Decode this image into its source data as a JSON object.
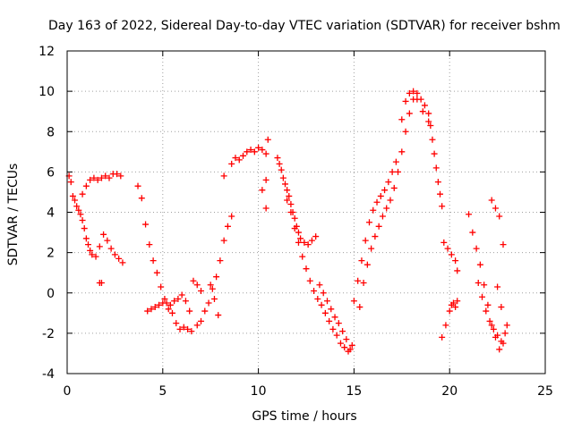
{
  "chart_data": {
    "type": "scatter",
    "title": "Day 163 of 2022, Sidereal Day-to-day VTEC variation (SDTVAR) for receiver bshm",
    "xlabel": "GPS time / hours",
    "ylabel": "SDTVAR / TECUs",
    "xlim": [
      0,
      25
    ],
    "ylim": [
      -4,
      12
    ],
    "xticks": [
      "0",
      "5",
      "10",
      "15",
      "20",
      "25"
    ],
    "yticks": [
      "-4",
      "-2",
      "0",
      "2",
      "4",
      "6",
      "8",
      "10",
      "12"
    ],
    "grid": true,
    "marker": "+",
    "color": "#ff0000",
    "series": [
      {
        "name": "SDTVAR",
        "x": [
          0.1,
          0.2,
          0.3,
          0.4,
          0.5,
          0.6,
          0.7,
          0.8,
          0.9,
          1.0,
          1.1,
          1.2,
          1.3,
          1.5,
          1.7,
          1.9,
          2.1,
          2.3,
          2.5,
          2.7,
          2.9,
          0.8,
          1.0,
          1.2,
          1.4,
          1.6,
          1.8,
          2.0,
          2.2,
          2.4,
          2.6,
          2.8,
          1.7,
          1.8,
          3.7,
          3.9,
          4.1,
          4.3,
          4.5,
          4.7,
          4.9,
          5.1,
          5.3,
          5.5,
          5.7,
          5.9,
          6.1,
          6.3,
          6.5,
          4.2,
          4.4,
          4.6,
          4.8,
          5.0,
          5.2,
          5.4,
          5.6,
          5.8,
          6.0,
          6.2,
          6.4,
          6.8,
          7.0,
          7.2,
          7.4,
          7.6,
          7.8,
          8.0,
          8.2,
          8.4,
          8.6,
          7.5,
          7.7,
          7.9,
          6.6,
          6.8,
          7.0,
          8.2,
          8.6,
          8.8,
          9.0,
          9.2,
          9.4,
          9.6,
          9.8,
          10.0,
          10.2,
          10.4,
          10.5,
          10.4,
          10.2,
          10.4,
          11.0,
          11.1,
          11.2,
          11.3,
          11.4,
          11.5,
          11.6,
          11.7,
          11.8,
          11.9,
          12.0,
          12.1,
          12.2,
          12.4,
          12.6,
          12.8,
          13.0,
          11.5,
          11.7,
          11.9,
          12.1,
          12.3,
          12.5,
          12.7,
          12.9,
          13.1,
          13.3,
          13.5,
          13.7,
          13.9,
          14.1,
          14.3,
          14.5,
          14.7,
          14.9,
          13.2,
          13.4,
          13.6,
          13.8,
          14.0,
          14.2,
          14.4,
          14.6,
          14.8,
          15.0,
          15.2,
          15.4,
          15.6,
          15.8,
          16.0,
          16.2,
          16.4,
          16.6,
          16.8,
          17.0,
          17.2,
          15.3,
          15.5,
          15.7,
          15.9,
          16.1,
          16.3,
          16.5,
          16.7,
          16.9,
          17.1,
          17.3,
          17.5,
          17.7,
          17.9,
          18.1,
          18.3,
          18.5,
          18.7,
          18.9,
          19.0,
          19.1,
          19.2,
          19.3,
          19.4,
          19.5,
          19.6,
          17.5,
          17.7,
          17.9,
          18.1,
          18.3,
          18.6,
          18.9,
          19.7,
          19.9,
          20.1,
          20.3,
          20.4,
          19.6,
          19.8,
          20.0,
          20.2,
          20.4,
          20.1,
          20.3,
          21.0,
          21.2,
          21.4,
          21.6,
          21.8,
          22.0,
          22.2,
          22.4,
          22.6,
          22.8,
          23.0,
          21.5,
          21.7,
          21.9,
          22.1,
          22.3,
          22.5,
          22.7,
          22.9,
          22.2,
          22.4,
          22.6,
          22.8,
          22.5,
          22.7
        ],
        "y": [
          5.8,
          5.5,
          4.8,
          4.6,
          4.3,
          4.1,
          3.9,
          3.6,
          3.2,
          2.7,
          2.4,
          2.1,
          1.9,
          1.8,
          2.3,
          2.9,
          2.6,
          2.2,
          1.9,
          1.7,
          1.5,
          4.9,
          5.3,
          5.6,
          5.7,
          5.6,
          5.7,
          5.8,
          5.7,
          5.9,
          5.9,
          5.8,
          0.5,
          0.5,
          5.3,
          4.7,
          3.4,
          2.4,
          1.6,
          1.0,
          0.3,
          -0.3,
          -0.8,
          -1.0,
          -1.5,
          -1.8,
          -1.7,
          -1.8,
          -1.9,
          -0.9,
          -0.8,
          -0.7,
          -0.6,
          -0.5,
          -0.5,
          -0.6,
          -0.4,
          -0.3,
          -0.1,
          -0.4,
          -0.9,
          -1.6,
          -1.4,
          -0.9,
          -0.5,
          0.2,
          0.8,
          1.6,
          2.6,
          3.3,
          3.8,
          0.4,
          -0.3,
          -1.1,
          0.6,
          0.4,
          0.1,
          5.8,
          6.4,
          6.7,
          6.6,
          6.8,
          7.0,
          7.1,
          7.0,
          7.2,
          7.1,
          6.9,
          7.6,
          5.6,
          5.1,
          4.2,
          6.7,
          6.4,
          6.1,
          5.7,
          5.4,
          5.1,
          4.8,
          4.4,
          4.0,
          3.7,
          3.3,
          3.0,
          2.7,
          2.5,
          2.4,
          2.6,
          2.8,
          4.6,
          4.0,
          3.2,
          2.5,
          1.8,
          1.2,
          0.6,
          0.1,
          -0.3,
          -0.6,
          -1.0,
          -1.4,
          -1.8,
          -2.1,
          -2.5,
          -2.7,
          -2.9,
          -2.6,
          0.4,
          0.0,
          -0.4,
          -0.8,
          -1.2,
          -1.5,
          -1.9,
          -2.3,
          -2.8,
          -0.4,
          0.6,
          1.6,
          2.6,
          3.5,
          4.1,
          4.5,
          4.8,
          5.1,
          5.5,
          6.0,
          6.5,
          -0.7,
          0.5,
          1.4,
          2.2,
          2.8,
          3.3,
          3.8,
          4.2,
          4.6,
          5.2,
          6.0,
          7.0,
          8.0,
          8.9,
          9.6,
          9.9,
          9.6,
          9.3,
          8.9,
          8.3,
          7.6,
          6.9,
          6.2,
          5.5,
          4.9,
          4.3,
          8.6,
          9.5,
          9.9,
          10.0,
          9.6,
          9.0,
          8.5,
          2.5,
          2.2,
          1.9,
          1.6,
          1.1,
          -2.2,
          -1.6,
          -0.9,
          -0.5,
          -0.4,
          -0.6,
          -0.7,
          3.9,
          3.0,
          2.2,
          1.4,
          0.4,
          -0.6,
          -1.6,
          -2.2,
          -2.8,
          -2.5,
          -1.6,
          0.5,
          -0.2,
          -0.9,
          -1.4,
          -1.8,
          -2.1,
          -2.4,
          -2.0,
          4.6,
          4.2,
          3.8,
          2.4,
          0.3,
          -0.7
        ]
      }
    ]
  }
}
